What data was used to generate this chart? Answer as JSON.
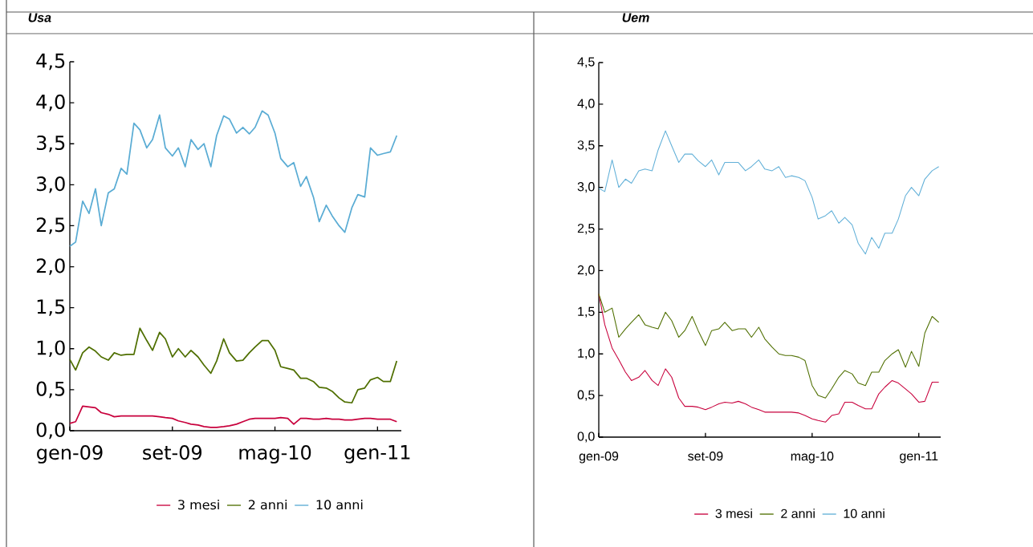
{
  "chart_data": [
    {
      "type": "line",
      "title": "Usa",
      "legend": "bottom",
      "x": [
        "2009-01-01",
        "2009-01-15",
        "2009-02-01",
        "2009-02-15",
        "2009-03-01",
        "2009-03-15",
        "2009-04-01",
        "2009-04-15",
        "2009-05-01",
        "2009-05-15",
        "2009-06-01",
        "2009-06-15",
        "2009-07-01",
        "2009-07-15",
        "2009-08-01",
        "2009-08-15",
        "2009-09-01",
        "2009-09-15",
        "2009-10-01",
        "2009-10-15",
        "2009-11-01",
        "2009-11-15",
        "2009-12-01",
        "2009-12-15",
        "2010-01-01",
        "2010-01-15",
        "2010-02-01",
        "2010-02-15",
        "2010-03-01",
        "2010-03-15",
        "2010-04-01",
        "2010-04-15",
        "2010-05-01",
        "2010-05-15",
        "2010-06-01",
        "2010-06-15",
        "2010-07-01",
        "2010-07-15",
        "2010-08-01",
        "2010-08-15",
        "2010-09-01",
        "2010-09-15",
        "2010-10-01",
        "2010-10-15",
        "2010-11-01",
        "2010-11-15",
        "2010-12-01",
        "2010-12-15",
        "2011-01-01",
        "2011-01-15",
        "2011-02-01",
        "2011-02-15"
      ],
      "series": [
        {
          "name": "3 mesi",
          "color": "#c8003c",
          "values": [
            0.09,
            0.11,
            0.3,
            0.29,
            0.28,
            0.22,
            0.2,
            0.17,
            0.18,
            0.18,
            0.18,
            0.18,
            0.18,
            0.18,
            0.17,
            0.16,
            0.15,
            0.12,
            0.1,
            0.08,
            0.07,
            0.05,
            0.04,
            0.04,
            0.05,
            0.06,
            0.08,
            0.11,
            0.14,
            0.15,
            0.15,
            0.15,
            0.15,
            0.16,
            0.15,
            0.08,
            0.15,
            0.15,
            0.14,
            0.14,
            0.15,
            0.14,
            0.14,
            0.13,
            0.13,
            0.14,
            0.15,
            0.15,
            0.14,
            0.14,
            0.14,
            0.11
          ]
        },
        {
          "name": "2 anni",
          "color": "#4f6f00",
          "values": [
            0.87,
            0.74,
            0.95,
            1.02,
            0.97,
            0.9,
            0.86,
            0.95,
            0.92,
            0.93,
            0.93,
            1.25,
            1.1,
            0.98,
            1.2,
            1.12,
            0.9,
            1.0,
            0.9,
            0.98,
            0.9,
            0.8,
            0.7,
            0.85,
            1.12,
            0.95,
            0.85,
            0.86,
            0.95,
            1.02,
            1.1,
            1.1,
            0.98,
            0.78,
            0.76,
            0.74,
            0.64,
            0.64,
            0.6,
            0.53,
            0.52,
            0.48,
            0.4,
            0.35,
            0.34,
            0.5,
            0.52,
            0.62,
            0.65,
            0.6,
            0.6,
            0.85
          ]
        },
        {
          "name": "10 anni",
          "color": "#5aacd4",
          "values": [
            2.25,
            2.3,
            2.8,
            2.65,
            2.95,
            2.5,
            2.9,
            2.95,
            3.2,
            3.13,
            3.75,
            3.67,
            3.45,
            3.55,
            3.85,
            3.45,
            3.35,
            3.45,
            3.22,
            3.55,
            3.43,
            3.5,
            3.22,
            3.6,
            3.84,
            3.8,
            3.63,
            3.7,
            3.62,
            3.7,
            3.9,
            3.85,
            3.63,
            3.32,
            3.22,
            3.27,
            2.98,
            3.1,
            2.85,
            2.55,
            2.75,
            2.62,
            2.5,
            2.42,
            2.72,
            2.88,
            2.85,
            3.45,
            3.36,
            3.38,
            3.4,
            3.6
          ]
        }
      ],
      "xlim": [
        "2009-01-01",
        "2011-02-25"
      ],
      "xticks": [
        {
          "value": "2009-01-01",
          "label": "gen-09"
        },
        {
          "value": "2009-09-01",
          "label": "set-09"
        },
        {
          "value": "2010-05-01",
          "label": "mag-10"
        },
        {
          "value": "2011-01-01",
          "label": "gen-11"
        }
      ],
      "ylim": [
        0,
        4.5
      ],
      "yticks": [
        {
          "value": 0,
          "label": "0,0"
        },
        {
          "value": 0.5,
          "label": "0,5"
        },
        {
          "value": 1,
          "label": "1,0"
        },
        {
          "value": 1.5,
          "label": "1,5"
        },
        {
          "value": 2,
          "label": "2,0"
        },
        {
          "value": 2.5,
          "label": "2,5"
        },
        {
          "value": 3,
          "label": "3,0"
        },
        {
          "value": 3.5,
          "label": "3,5"
        },
        {
          "value": 4,
          "label": "4,0"
        },
        {
          "value": 4.5,
          "label": "4,5"
        }
      ]
    },
    {
      "type": "line",
      "title": "Uem",
      "legend": "bottom",
      "x": [
        "2009-01-01",
        "2009-01-15",
        "2009-02-01",
        "2009-02-15",
        "2009-03-01",
        "2009-03-15",
        "2009-04-01",
        "2009-04-15",
        "2009-05-01",
        "2009-05-15",
        "2009-06-01",
        "2009-06-15",
        "2009-07-01",
        "2009-07-15",
        "2009-08-01",
        "2009-08-15",
        "2009-09-01",
        "2009-09-15",
        "2009-10-01",
        "2009-10-15",
        "2009-11-01",
        "2009-11-15",
        "2009-12-01",
        "2009-12-15",
        "2010-01-01",
        "2010-01-15",
        "2010-02-01",
        "2010-02-15",
        "2010-03-01",
        "2010-03-15",
        "2010-04-01",
        "2010-04-15",
        "2010-05-01",
        "2010-05-15",
        "2010-06-01",
        "2010-06-15",
        "2010-07-01",
        "2010-07-15",
        "2010-08-01",
        "2010-08-15",
        "2010-09-01",
        "2010-09-15",
        "2010-10-01",
        "2010-10-15",
        "2010-11-01",
        "2010-11-15",
        "2010-12-01",
        "2010-12-15",
        "2011-01-01",
        "2011-01-15",
        "2011-02-01",
        "2011-02-15"
      ],
      "series": [
        {
          "name": "3 mesi",
          "color": "#c8003c",
          "values": [
            1.72,
            1.35,
            1.07,
            0.93,
            0.78,
            0.68,
            0.72,
            0.8,
            0.68,
            0.62,
            0.82,
            0.72,
            0.47,
            0.37,
            0.37,
            0.36,
            0.33,
            0.36,
            0.4,
            0.42,
            0.41,
            0.43,
            0.4,
            0.36,
            0.33,
            0.3,
            0.3,
            0.3,
            0.3,
            0.3,
            0.29,
            0.26,
            0.22,
            0.2,
            0.18,
            0.26,
            0.28,
            0.42,
            0.42,
            0.38,
            0.34,
            0.34,
            0.52,
            0.6,
            0.68,
            0.65,
            0.58,
            0.52,
            0.42,
            0.43,
            0.66,
            0.66
          ]
        },
        {
          "name": "2 anni",
          "color": "#4f6f00",
          "values": [
            1.72,
            1.5,
            1.55,
            1.2,
            1.3,
            1.38,
            1.47,
            1.35,
            1.32,
            1.3,
            1.5,
            1.4,
            1.2,
            1.28,
            1.45,
            1.28,
            1.1,
            1.28,
            1.3,
            1.38,
            1.28,
            1.3,
            1.3,
            1.2,
            1.32,
            1.18,
            1.08,
            1.0,
            0.98,
            0.98,
            0.96,
            0.92,
            0.62,
            0.5,
            0.47,
            0.58,
            0.72,
            0.8,
            0.76,
            0.65,
            0.62,
            0.78,
            0.78,
            0.92,
            1.0,
            1.05,
            0.84,
            1.03,
            0.85,
            1.25,
            1.45,
            1.38
          ]
        },
        {
          "name": "10 anni",
          "color": "#62b0d8",
          "values": [
            2.99,
            2.95,
            3.33,
            3.0,
            3.1,
            3.05,
            3.2,
            3.22,
            3.2,
            3.45,
            3.68,
            3.5,
            3.3,
            3.4,
            3.4,
            3.32,
            3.25,
            3.33,
            3.15,
            3.3,
            3.3,
            3.3,
            3.2,
            3.25,
            3.33,
            3.22,
            3.2,
            3.25,
            3.12,
            3.14,
            3.12,
            3.08,
            2.88,
            2.62,
            2.66,
            2.72,
            2.57,
            2.64,
            2.55,
            2.33,
            2.2,
            2.4,
            2.27,
            2.45,
            2.45,
            2.62,
            2.9,
            3.0,
            2.9,
            3.1,
            3.2,
            3.25
          ]
        }
      ],
      "xlim": [
        "2009-01-01",
        "2011-02-19"
      ],
      "xticks": [
        {
          "value": "2009-01-01",
          "label": "gen-09"
        },
        {
          "value": "2009-09-01",
          "label": "set-09"
        },
        {
          "value": "2010-05-01",
          "label": "mag-10"
        },
        {
          "value": "2011-01-01",
          "label": "gen-11"
        }
      ],
      "ylim": [
        0,
        4.5
      ],
      "yticks": [
        {
          "value": 0,
          "label": "0,0"
        },
        {
          "value": 0.5,
          "label": "0,5"
        },
        {
          "value": 1,
          "label": "1,0"
        },
        {
          "value": 1.5,
          "label": "1,5"
        },
        {
          "value": 2,
          "label": "2,0"
        },
        {
          "value": 2.5,
          "label": "2,5"
        },
        {
          "value": 3,
          "label": "3,0"
        },
        {
          "value": 3.5,
          "label": "3,5"
        },
        {
          "value": 4,
          "label": "4,0"
        },
        {
          "value": 4.5,
          "label": "4,5"
        }
      ]
    }
  ]
}
